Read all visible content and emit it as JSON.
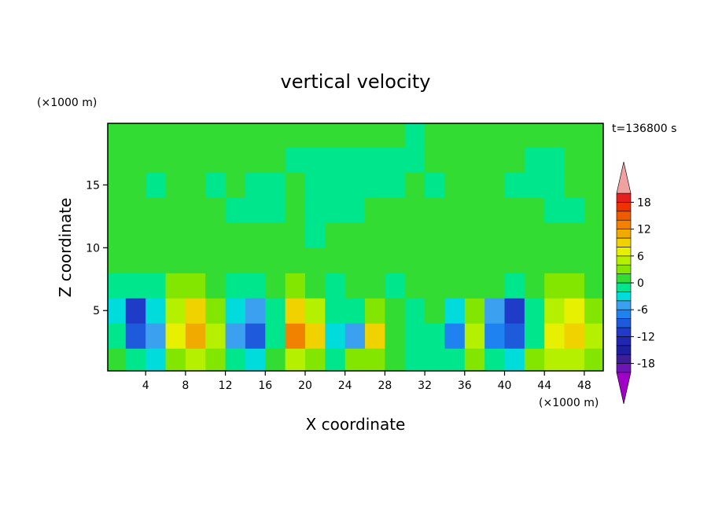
{
  "chart_data": {
    "type": "contour",
    "title": "vertical velocity",
    "x_label": "X coordinate",
    "y_label": "Z coordinate",
    "x_unit": "(×1000 m)",
    "y_unit": "(×1000 m)",
    "time_label": "t=136800 s",
    "xlim": [
      0.2,
      49.9
    ],
    "ylim": [
      0.2,
      19.9
    ],
    "xticks": [
      4,
      8,
      12,
      16,
      20,
      24,
      28,
      32,
      36,
      40,
      44,
      48
    ],
    "yticks": [
      5,
      10,
      15
    ],
    "x": [
      1,
      3,
      5,
      7,
      9,
      11,
      13,
      15,
      17,
      19,
      21,
      23,
      25,
      27,
      29,
      31,
      33,
      35,
      37,
      39,
      41,
      43,
      45,
      47,
      49
    ],
    "y": [
      1,
      3,
      5,
      7,
      9,
      11,
      13,
      15,
      17,
      19
    ],
    "values": [
      [
        0,
        -2,
        -4,
        2,
        4,
        2,
        -2,
        -4,
        0,
        4,
        2,
        -2,
        2,
        2,
        0,
        -1,
        -1,
        -2,
        2,
        -2,
        -4,
        2,
        4,
        4,
        2
      ],
      [
        -2,
        -10,
        -6,
        6,
        11,
        4,
        -6,
        -10,
        -2,
        12,
        8,
        -4,
        -6,
        9,
        1,
        -2,
        -1,
        -8,
        4,
        -8,
        -10,
        -2,
        7,
        8,
        4
      ],
      [
        -4,
        -12,
        -4,
        5,
        8,
        2,
        -4,
        -6,
        -1,
        8,
        4,
        -2,
        -2,
        3,
        1,
        -1,
        1,
        -4,
        2,
        -6,
        -12,
        -1,
        5,
        6,
        3
      ],
      [
        -2,
        -2,
        -1,
        3,
        3,
        1,
        -2,
        -2,
        1,
        3,
        1,
        -1,
        1,
        1,
        -1,
        1,
        1,
        1,
        1,
        1,
        -2,
        1,
        3,
        3,
        1
      ],
      [
        1,
        1,
        1,
        1,
        1,
        1,
        1,
        1,
        1,
        1,
        1,
        1,
        1,
        1,
        1,
        1,
        1,
        1,
        1,
        1,
        1,
        1,
        1,
        1,
        1
      ],
      [
        1,
        1,
        1,
        1,
        1,
        1,
        1,
        1,
        1,
        1,
        -1,
        1,
        1,
        1,
        1,
        1,
        1,
        1,
        1,
        1,
        1,
        1,
        1,
        1,
        1
      ],
      [
        1,
        1,
        1,
        1,
        1,
        1,
        -1,
        -1,
        -1,
        1,
        -1,
        -1,
        -1,
        1,
        1,
        1,
        1,
        1,
        1,
        1,
        1,
        1,
        -1,
        -1,
        1
      ],
      [
        1,
        1,
        -1,
        1,
        1,
        -1,
        1,
        -1,
        -1,
        1,
        -1,
        -1,
        -1,
        -1,
        -1,
        1,
        -1,
        1,
        1,
        1,
        -1,
        -1,
        -1,
        1,
        1
      ],
      [
        1,
        1,
        1,
        1,
        1,
        1,
        1,
        1,
        1,
        -1,
        -1,
        -1,
        -1,
        -1,
        -1,
        -1,
        1,
        1,
        1,
        1,
        1,
        -1,
        -1,
        1,
        1
      ],
      [
        1,
        1,
        1,
        1,
        1,
        1,
        1,
        1,
        1,
        1,
        1,
        1,
        1,
        1,
        1,
        -1,
        1,
        1,
        1,
        1,
        1,
        1,
        1,
        1,
        1
      ]
    ],
    "levels": [
      -20,
      -18,
      -16,
      -14,
      -12,
      -10,
      -8,
      -6,
      -4,
      -2,
      0,
      2,
      4,
      6,
      8,
      10,
      12,
      14,
      16,
      18,
      20
    ],
    "colors": [
      "#a000c8",
      "#6e14b4",
      "#3c1e96",
      "#1e1ea0",
      "#1e28b4",
      "#1e3cc8",
      "#1e5adc",
      "#1e82f0",
      "#3ca0f0",
      "#00dcdc",
      "#00e68c",
      "#32dc32",
      "#82e600",
      "#b4f000",
      "#e6f000",
      "#f0d200",
      "#f0aa00",
      "#f08200",
      "#f05a00",
      "#f03200",
      "#e61e1e",
      "#f0a0a0"
    ],
    "colorbar_ticks": [
      -18,
      -12,
      -6,
      0,
      6,
      12,
      18
    ]
  }
}
